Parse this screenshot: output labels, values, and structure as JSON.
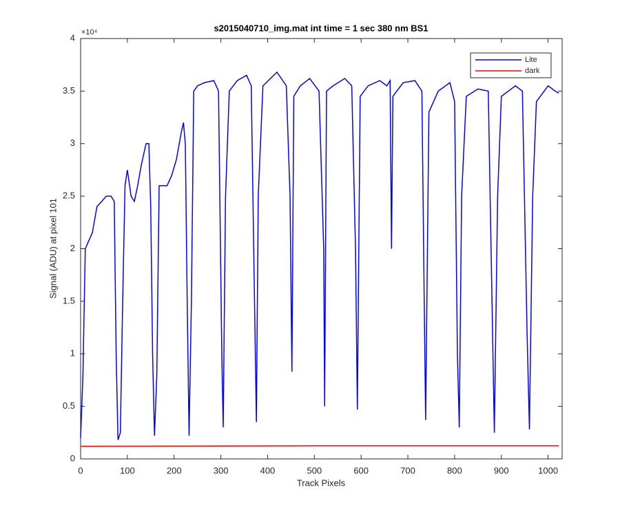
{
  "chart_data": {
    "type": "line",
    "title": "s2015040710_img.mat int time = 1 sec  380 nm BS1",
    "x_label": "Track Pixels",
    "y_label": "Signal (ADU) at pixel 101",
    "y_exponent_label": "×10⁴",
    "xlim": [
      0,
      1030
    ],
    "xticks": [
      0,
      100,
      200,
      300,
      400,
      500,
      600,
      700,
      800,
      900,
      1000
    ],
    "ylim": [
      0,
      4
    ],
    "yticks": [
      0,
      0.5,
      1,
      1.5,
      2,
      2.5,
      3,
      3.5,
      4
    ],
    "grid": false,
    "legend": "northeast",
    "series": [
      {
        "name": "Lite",
        "color": "#0000ff",
        "x": [
          0,
          5,
          10,
          15,
          25,
          35,
          45,
          55,
          65,
          72,
          76,
          80,
          85,
          90,
          95,
          100,
          108,
          115,
          122,
          130,
          140,
          146,
          150,
          154,
          158,
          163,
          168,
          175,
          185,
          195,
          205,
          215,
          220,
          224,
          228,
          232,
          237,
          242,
          250,
          265,
          285,
          295,
          302,
          305,
          310,
          318,
          335,
          355,
          365,
          372,
          376,
          380,
          390,
          420,
          440,
          448,
          452,
          456,
          470,
          490,
          510,
          520,
          522,
          526,
          540,
          565,
          580,
          588,
          592,
          598,
          615,
          640,
          655,
          662,
          665,
          668,
          690,
          715,
          730,
          735,
          738,
          745,
          765,
          790,
          800,
          806,
          810,
          815,
          825,
          850,
          872,
          880,
          885,
          892,
          900,
          930,
          945,
          955,
          960,
          967,
          975,
          1000,
          1015,
          1023
        ],
        "values": [
          0.2,
          0.8,
          2.0,
          2.05,
          2.15,
          2.4,
          2.45,
          2.5,
          2.5,
          2.45,
          1.0,
          0.18,
          0.25,
          1.5,
          2.6,
          2.75,
          2.5,
          2.45,
          2.6,
          2.8,
          3.0,
          3.0,
          2.4,
          1.0,
          0.22,
          0.8,
          2.6,
          2.6,
          2.6,
          2.7,
          2.85,
          3.1,
          3.2,
          3.0,
          1.5,
          0.22,
          1.5,
          3.5,
          3.55,
          3.58,
          3.6,
          3.5,
          1.0,
          0.3,
          2.5,
          3.5,
          3.6,
          3.65,
          3.55,
          1.5,
          0.35,
          2.5,
          3.55,
          3.68,
          3.55,
          2.5,
          0.83,
          3.45,
          3.55,
          3.62,
          3.5,
          2.0,
          0.5,
          3.5,
          3.55,
          3.62,
          3.55,
          2.0,
          0.47,
          3.45,
          3.55,
          3.6,
          3.55,
          3.6,
          2.0,
          3.45,
          3.58,
          3.6,
          3.5,
          1.5,
          0.37,
          3.3,
          3.5,
          3.58,
          3.4,
          1.0,
          0.3,
          2.5,
          3.45,
          3.52,
          3.5,
          1.5,
          0.25,
          2.5,
          3.45,
          3.55,
          3.5,
          1.2,
          0.28,
          2.5,
          3.4,
          3.55,
          3.5,
          3.48
        ]
      },
      {
        "name": "dark",
        "color": "#ff0000",
        "x": [
          0,
          500,
          1023
        ],
        "values": [
          0.12,
          0.125,
          0.125
        ]
      }
    ]
  }
}
